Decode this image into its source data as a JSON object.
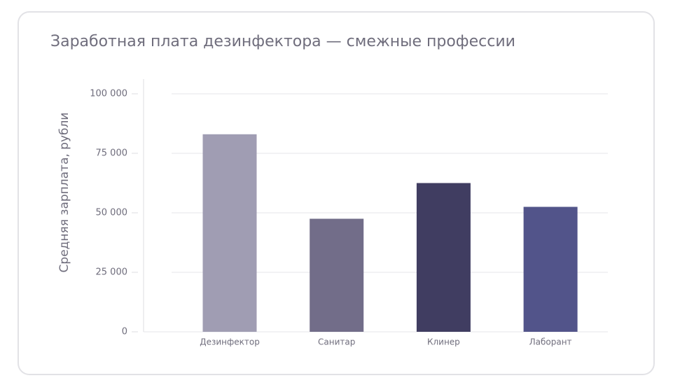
{
  "chart_data": {
    "type": "bar",
    "title": "Заработная плата дезинфектора — смежные профессии",
    "y_label": "Средняя зарплата, рубли",
    "categories": [
      "Дезинфектор",
      "Санитар",
      "Клинер",
      "Лаборант"
    ],
    "values": [
      83000,
      47500,
      62500,
      52500
    ],
    "colors": [
      "#a09db3",
      "#726d89",
      "#403d61",
      "#52548a"
    ],
    "ylim": [
      0,
      100000
    ],
    "yticks": [
      0,
      {
        "value": 25000,
        "label": "25 000"
      },
      {
        "value": 50000,
        "label": "50 000"
      },
      {
        "value": 75000,
        "label": "75 000"
      },
      {
        "value": 100000,
        "label": "100 000"
      }
    ],
    "grid": true
  }
}
